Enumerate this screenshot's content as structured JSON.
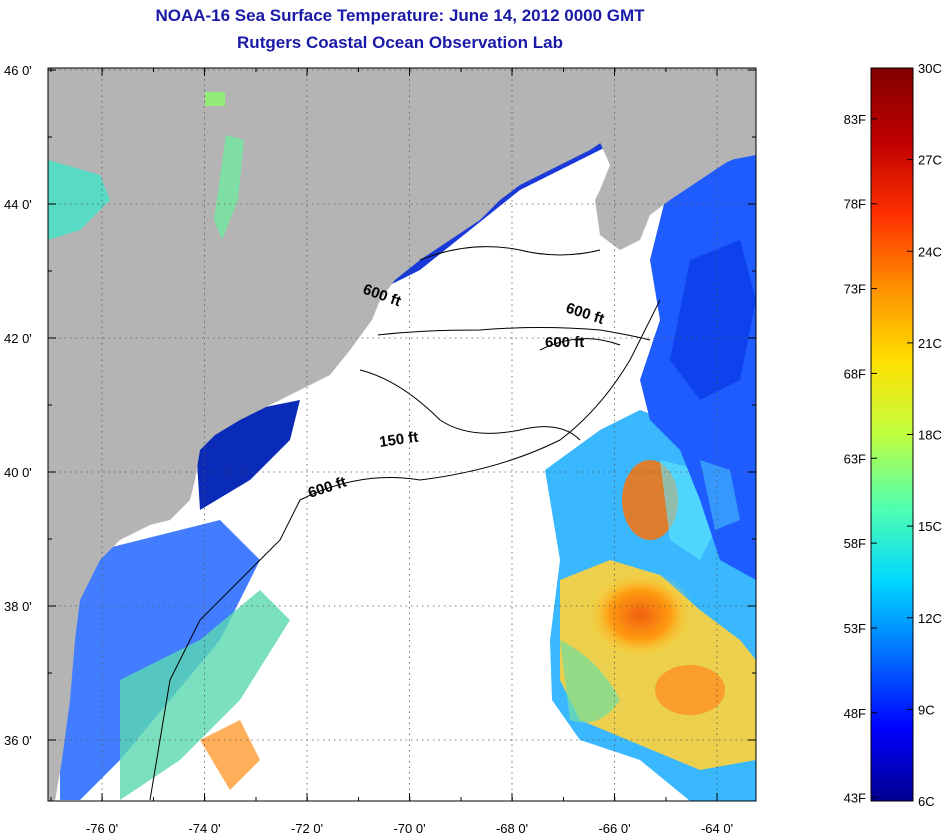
{
  "title": "NOAA-16 Sea Surface Temperature:  June 14, 2012 0000 GMT",
  "subtitle": "Rutgers Coastal Ocean Observation Lab",
  "map": {
    "lon_ticks": [
      "-76 0'",
      "-74 0'",
      "-72 0'",
      "-70 0'",
      "-68 0'",
      "-66 0'",
      "-64 0'"
    ],
    "lat_ticks": [
      "46 0'",
      "44 0'",
      "42 0'",
      "40 0'",
      "38 0'",
      "36 0'"
    ],
    "contour_labels": [
      "600 ft",
      "600 ft",
      "600 ft",
      "150 ft",
      "600 ft"
    ],
    "colors": {
      "land": "#b4b4b4",
      "cloud": "#ffffff"
    }
  },
  "colorbar": {
    "celsius": [
      "30C",
      "27C",
      "24C",
      "21C",
      "18C",
      "15C",
      "12C",
      "9C",
      "6C"
    ],
    "fahrenheit": [
      "83F",
      "78F",
      "73F",
      "68F",
      "63F",
      "58F",
      "53F",
      "48F",
      "43F"
    ],
    "stops": [
      "#00008f",
      "#0000ff",
      "#0070ff",
      "#00d8ff",
      "#50ffaf",
      "#c0ff40",
      "#ffe000",
      "#ff9000",
      "#ff3000",
      "#c00000",
      "#800000"
    ]
  }
}
